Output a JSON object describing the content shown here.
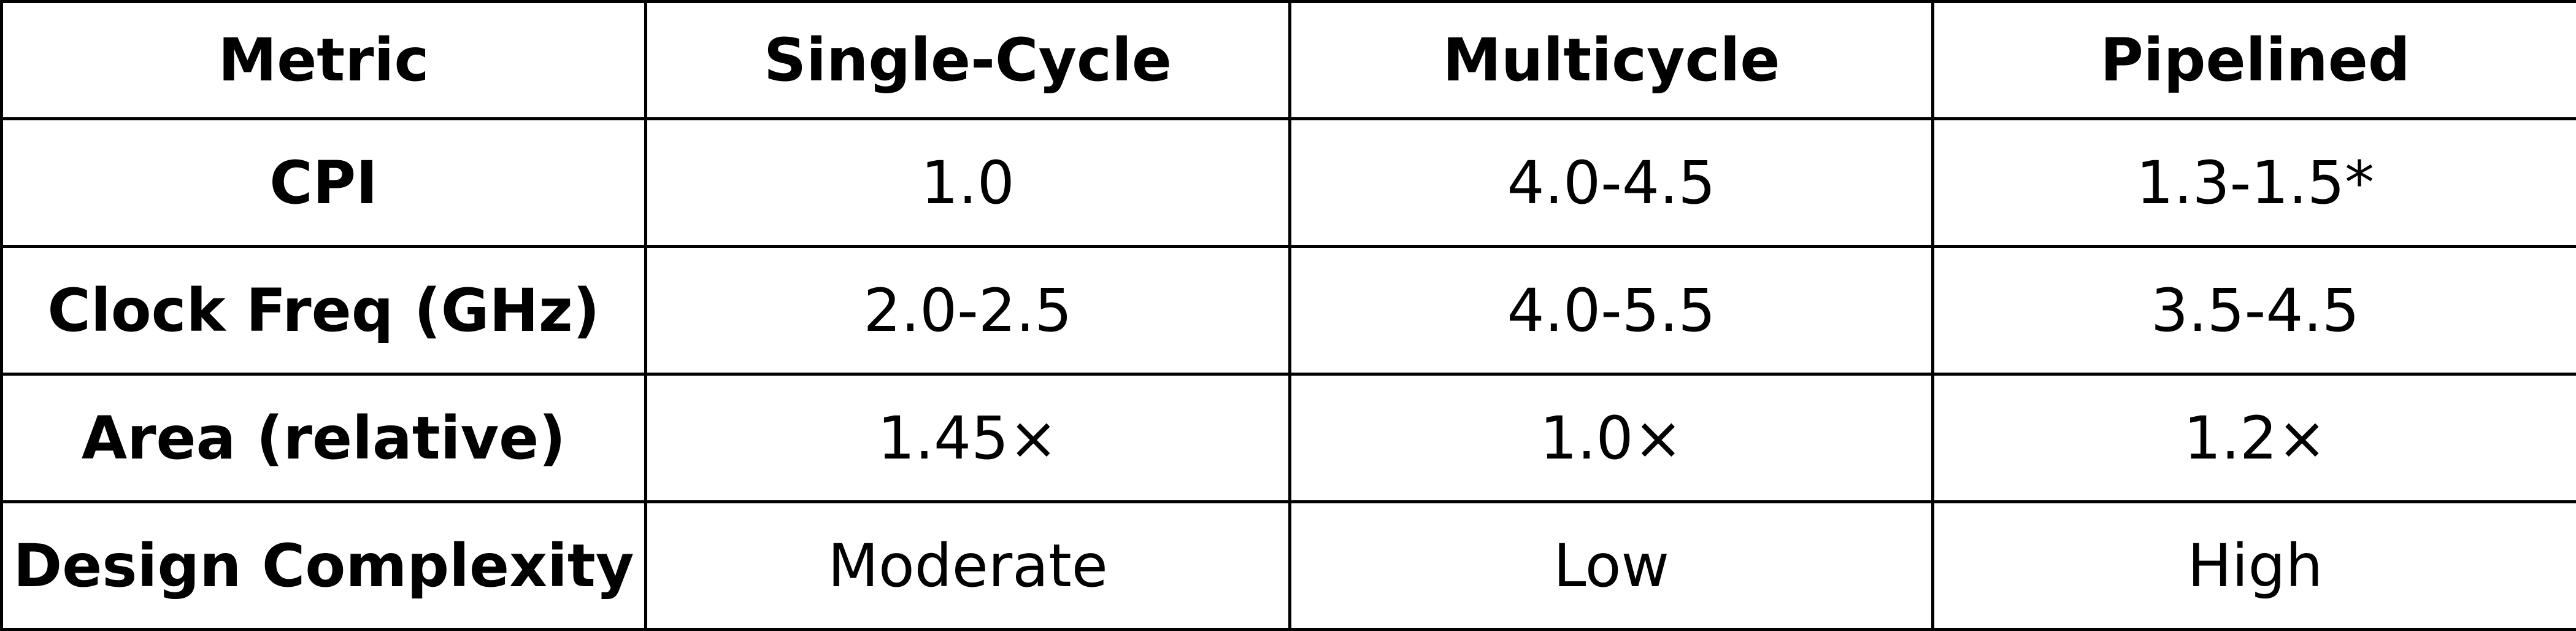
{
  "table": {
    "headers": [
      "Metric",
      "Single-Cycle",
      "Multicycle",
      "Pipelined"
    ],
    "rows": [
      {
        "metric": "CPI",
        "cells": [
          "1.0",
          "4.0-4.5",
          "1.3-1.5*"
        ]
      },
      {
        "metric": "Clock Freq (GHz)",
        "cells": [
          "2.0-2.5",
          "4.0-5.5",
          "3.5-4.5"
        ]
      },
      {
        "metric": "Area (relative)",
        "cells": [
          "1.45×",
          "1.0×",
          "1.2×"
        ]
      },
      {
        "metric": "Design Complexity",
        "cells": [
          "Moderate",
          "Low",
          "High"
        ]
      }
    ]
  }
}
